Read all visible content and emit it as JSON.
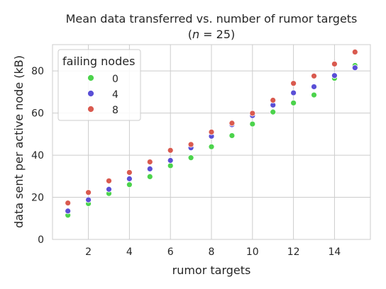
{
  "chart_data": {
    "type": "scatter",
    "title": "Mean data transferred vs. number of rumor targets",
    "subtitle": "(n = 25)",
    "subtitle_italic_part": "n",
    "subtitle_rest": " = 25)",
    "subtitle_open": "(",
    "xlabel": "rumor targets",
    "ylabel": "data sent per active node (kB)",
    "xlim": [
      0.25,
      15.75
    ],
    "ylim": [
      0,
      92.5
    ],
    "xticks": [
      2,
      4,
      6,
      8,
      10,
      12,
      14
    ],
    "yticks": [
      0,
      20,
      40,
      60,
      80
    ],
    "grid": true,
    "legend": {
      "title": "failing nodes",
      "placement": "top-left"
    },
    "x": [
      1,
      2,
      3,
      4,
      5,
      6,
      7,
      8,
      9,
      10,
      11,
      12,
      13,
      14,
      15
    ],
    "series": [
      {
        "name": "0",
        "color": "#4cd34c",
        "values": [
          11.5,
          17.0,
          21.8,
          26.0,
          29.8,
          35.0,
          38.8,
          44.0,
          49.3,
          54.8,
          60.5,
          64.8,
          68.6,
          76.5,
          82.6
        ]
      },
      {
        "name": "4",
        "color": "#5a4fd6",
        "values": [
          13.5,
          18.8,
          23.8,
          28.8,
          33.5,
          37.5,
          43.5,
          49.0,
          54.5,
          58.8,
          63.8,
          69.6,
          72.5,
          77.8,
          81.5
        ]
      },
      {
        "name": "8",
        "color": "#d95a4f",
        "values": [
          17.3,
          22.3,
          27.8,
          31.8,
          36.8,
          42.3,
          45.1,
          51.0,
          55.2,
          59.9,
          66.1,
          74.1,
          77.6,
          83.3,
          89.0
        ]
      }
    ]
  }
}
